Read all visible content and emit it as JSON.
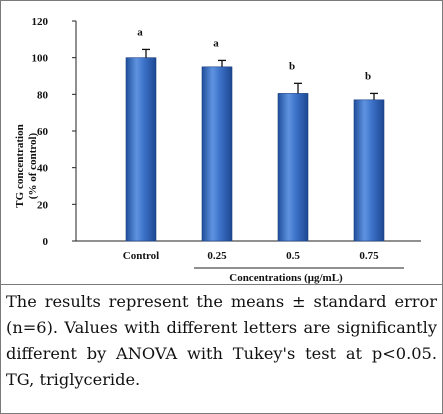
{
  "chart_data": {
    "type": "bar",
    "ylabel": "TG concentration (% of control)",
    "ylabel_lines": [
      "TG concentration",
      "(% of control)"
    ],
    "xlabel": "Concentrations (μg/mL)",
    "categories": [
      "Control",
      "0.25",
      "0.5",
      "0.75"
    ],
    "values": [
      100,
      95,
      80.5,
      77
    ],
    "errors": [
      4.5,
      3.5,
      5.5,
      3.5
    ],
    "significance_letters": [
      "a",
      "a",
      "b",
      "b"
    ],
    "ylim": [
      0,
      120
    ],
    "yticks": [
      0,
      20,
      40,
      60,
      80,
      100,
      120
    ],
    "grid": false,
    "bar_color": "#3a6fc4"
  },
  "caption": "The results represent the means ± standard error (n=6). Values with different letters are significantly different by ANOVA with Tukey's test at p<0.05. TG, triglyceride."
}
